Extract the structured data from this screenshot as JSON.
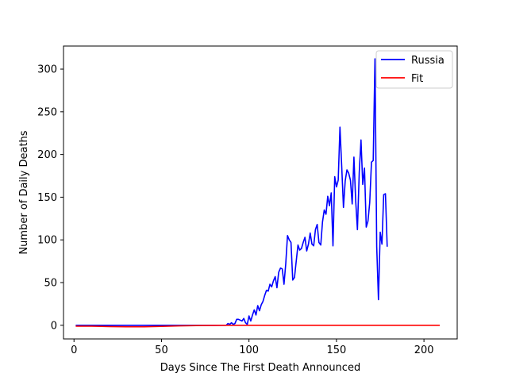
{
  "chart_data": {
    "type": "line",
    "title": "",
    "xlabel": "Days Since The First Death Announced",
    "ylabel": "Number of Daily Deaths",
    "xlim": [
      -6,
      219
    ],
    "ylim": [
      -16,
      327
    ],
    "xticks": [
      0,
      50,
      100,
      150,
      200
    ],
    "yticks": [
      0,
      50,
      100,
      150,
      200,
      250,
      300
    ],
    "grid": false,
    "legend_position": "top-right",
    "series": [
      {
        "name": "Russia",
        "color": "#0000ff",
        "x": [
          1,
          10,
          20,
          30,
          40,
          50,
          60,
          70,
          80,
          87,
          88,
          89,
          90,
          91,
          92,
          93,
          94,
          95,
          96,
          97,
          98,
          99,
          100,
          101,
          102,
          103,
          104,
          105,
          106,
          107,
          108,
          109,
          110,
          111,
          112,
          113,
          114,
          115,
          116,
          117,
          118,
          119,
          120,
          121,
          122,
          123,
          124,
          125,
          126,
          127,
          128,
          129,
          130,
          131,
          132,
          133,
          134,
          135,
          136,
          137,
          138,
          139,
          140,
          141,
          142,
          143,
          144,
          145,
          146,
          147,
          148,
          149,
          150,
          151,
          152,
          153,
          154,
          155,
          156,
          157,
          158,
          159,
          160,
          161,
          162,
          163,
          164,
          165,
          166,
          167,
          168,
          169,
          170,
          171,
          172,
          173,
          174,
          175,
          176,
          177,
          178,
          179
        ],
        "y": [
          0,
          0,
          0,
          0,
          0,
          0,
          0,
          0,
          0,
          0,
          2,
          1,
          3,
          1,
          2,
          7,
          7,
          6,
          5,
          8,
          3,
          1,
          11,
          5,
          12,
          18,
          12,
          23,
          17,
          24,
          28,
          35,
          41,
          40,
          48,
          45,
          52,
          57,
          44,
          62,
          67,
          66,
          48,
          72,
          105,
          100,
          97,
          53,
          56,
          75,
          94,
          88,
          90,
          97,
          103,
          87,
          95,
          108,
          95,
          93,
          112,
          118,
          97,
          94,
          121,
          135,
          130,
          151,
          140,
          155,
          93,
          174,
          162,
          170,
          232,
          186,
          138,
          169,
          182,
          178,
          170,
          142,
          197,
          146,
          112,
          179,
          217,
          165,
          184,
          115,
          122,
          144,
          191,
          193,
          312,
          92,
          30,
          109,
          95,
          153,
          154,
          92
        ]
      },
      {
        "name": "Fit",
        "color": "#ff0000",
        "x": [
          1,
          10,
          20,
          30,
          40,
          50,
          60,
          70,
          80,
          87,
          90,
          100,
          120,
          140,
          160,
          180,
          200,
          209
        ],
        "y": [
          -1,
          -1,
          -1.5,
          -1.8,
          -1.8,
          -1.3,
          -0.8,
          -0.4,
          -0.1,
          0,
          0,
          0,
          0,
          0,
          0,
          0,
          0,
          0
        ]
      }
    ]
  }
}
